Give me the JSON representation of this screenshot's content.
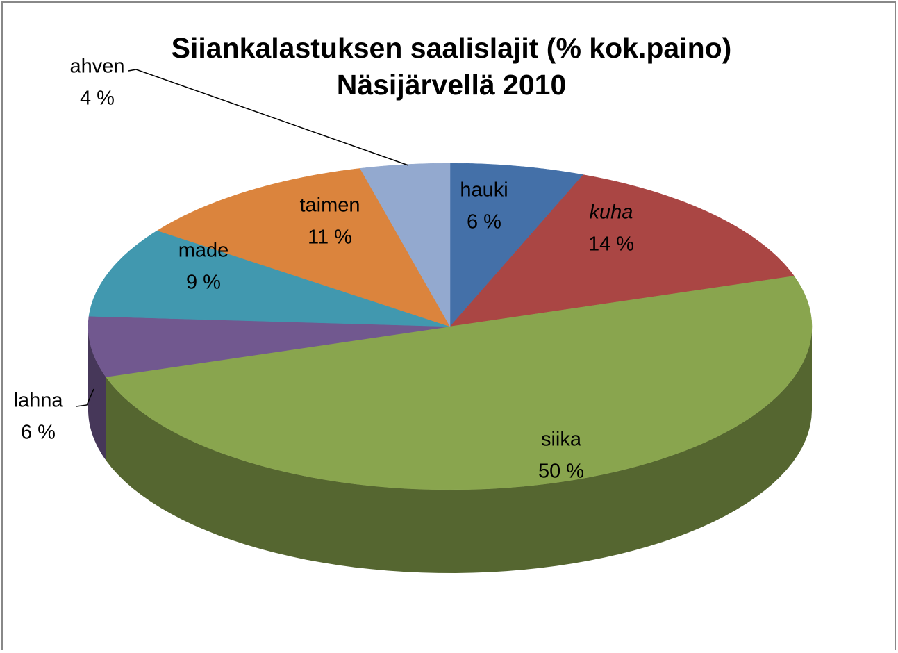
{
  "chart_data": {
    "type": "pie",
    "title": [
      "Siiankalastuksen saalislajit (% kok.paino)",
      "Näsijärvellä 2010"
    ],
    "categories": [
      "hauki",
      "kuha",
      "siika",
      "lahna",
      "made",
      "taimen",
      "ahven"
    ],
    "values": [
      6,
      14,
      50,
      6,
      9,
      11,
      4
    ],
    "value_labels": [
      "6 %",
      "14 %",
      "50 %",
      "6 %",
      "9 %",
      "11 %",
      "4 %"
    ],
    "colors": [
      "#4470a8",
      "#aa4644",
      "#89a54e",
      "#71588f",
      "#4198af",
      "#db843d",
      "#93a9cf"
    ]
  }
}
